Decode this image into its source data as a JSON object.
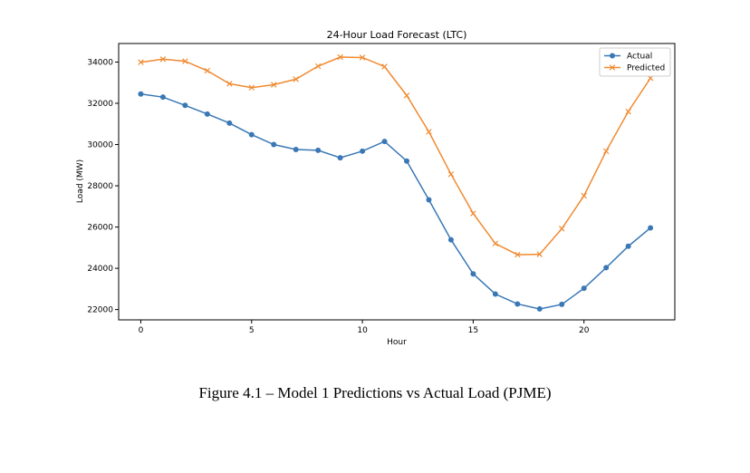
{
  "chart_data": {
    "type": "line",
    "title": "24-Hour Load Forecast (LTC)",
    "xlabel": "Hour",
    "ylabel": "Load (MW)",
    "x": [
      0,
      1,
      2,
      3,
      4,
      5,
      6,
      7,
      8,
      9,
      10,
      11,
      12,
      13,
      14,
      15,
      16,
      17,
      18,
      19,
      20,
      21,
      22,
      23
    ],
    "xlim": [
      -1,
      24.1
    ],
    "ylim": [
      21500,
      34900
    ],
    "xticks": [
      0,
      5,
      10,
      15,
      20
    ],
    "yticks": [
      22000,
      24000,
      26000,
      28000,
      30000,
      32000,
      34000
    ],
    "xtick_labels": [
      "0",
      "5",
      "10",
      "15",
      "20"
    ],
    "ytick_labels": [
      "22000",
      "24000",
      "26000",
      "28000",
      "30000",
      "32000",
      "34000"
    ],
    "grid": false,
    "legend_position": "top-right",
    "series": [
      {
        "name": "Actual",
        "color": "#3a78b5",
        "marker": "circle",
        "values": [
          32450,
          32300,
          31900,
          31480,
          31040,
          30480,
          30000,
          29760,
          29720,
          29360,
          29680,
          30150,
          29200,
          27320,
          25380,
          23730,
          22750,
          22270,
          22030,
          22250,
          23030,
          24030,
          25070,
          25960
        ]
      },
      {
        "name": "Predicted",
        "color": "#f08a31",
        "marker": "x",
        "values": [
          33990,
          34140,
          34040,
          33580,
          32950,
          32760,
          32900,
          33170,
          33800,
          34240,
          34220,
          33780,
          32380,
          30620,
          28560,
          26660,
          25200,
          24660,
          24680,
          25920,
          27520,
          29680,
          31600,
          33220
        ]
      }
    ]
  },
  "caption": "Figure 4.1 – Model 1 Predictions vs Actual Load (PJME)"
}
